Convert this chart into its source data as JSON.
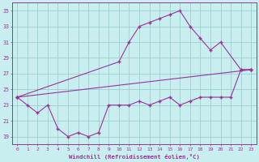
{
  "xlabel": "Windchill (Refroidissement éolien,°C)",
  "bg_color": "#c8eef0",
  "grid_color": "#9dcfcc",
  "line_color": "#993399",
  "xlim": [
    -0.5,
    23.5
  ],
  "ylim": [
    18,
    36
  ],
  "yticks": [
    19,
    21,
    23,
    25,
    27,
    29,
    31,
    33,
    35
  ],
  "xticks": [
    0,
    1,
    2,
    3,
    4,
    5,
    6,
    7,
    8,
    9,
    10,
    11,
    12,
    13,
    14,
    15,
    16,
    17,
    18,
    19,
    20,
    21,
    22,
    23
  ],
  "line1_x": [
    0,
    1,
    2,
    3,
    4,
    5,
    6,
    7,
    8,
    9,
    10,
    11,
    12,
    13,
    14,
    15,
    16,
    17,
    18,
    19,
    20,
    21,
    22,
    23
  ],
  "line1_y": [
    24.0,
    23.0,
    22.0,
    23.0,
    20.0,
    19.0,
    19.5,
    19.0,
    19.5,
    23.0,
    23.0,
    23.0,
    23.5,
    23.0,
    23.5,
    24.0,
    23.0,
    23.5,
    24.0,
    24.0,
    24.0,
    24.0,
    27.5,
    27.5
  ],
  "line2_x": [
    0,
    10,
    11,
    12,
    13,
    14,
    15,
    16,
    17,
    18,
    19,
    20,
    22,
    23
  ],
  "line2_y": [
    24.0,
    28.5,
    31.0,
    33.0,
    33.5,
    34.0,
    34.5,
    35.0,
    33.0,
    31.5,
    30.0,
    31.0,
    27.5,
    27.5
  ],
  "line3_x": [
    0,
    23
  ],
  "line3_y": [
    24.0,
    27.5
  ]
}
